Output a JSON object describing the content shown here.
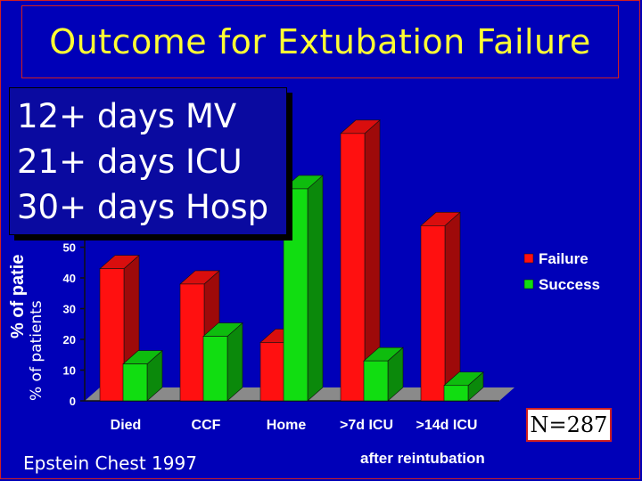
{
  "slide": {
    "title": "Outcome for Extubation Failure",
    "note_lines": [
      "12+ days MV",
      "21+ days ICU",
      "30+ days Hosp"
    ],
    "n_label": "N=287",
    "source": "Epstein Chest 1997",
    "footnote": "after reintubation"
  },
  "colors": {
    "background": "#0000b8",
    "title": "#ffff33",
    "failure": "#ff1010",
    "success": "#11dd11",
    "border": "#d02020"
  },
  "chart_data": {
    "type": "bar",
    "categories": [
      "Died",
      "CCF",
      "Home",
      ">7d ICU",
      ">14d ICU"
    ],
    "series": [
      {
        "name": "Failure",
        "values": [
          43,
          38,
          19,
          87,
          57
        ]
      },
      {
        "name": "Success",
        "values": [
          12,
          21,
          69,
          13,
          5
        ]
      }
    ],
    "ylabel_front": "% of patie",
    "ylabel_back": "% of patients",
    "yticks": [
      0,
      10,
      20,
      30,
      40,
      50
    ],
    "ylim": [
      0,
      90
    ],
    "legend": {
      "position": "right",
      "entries": [
        "Failure",
        "Success"
      ]
    },
    "grid": false
  }
}
